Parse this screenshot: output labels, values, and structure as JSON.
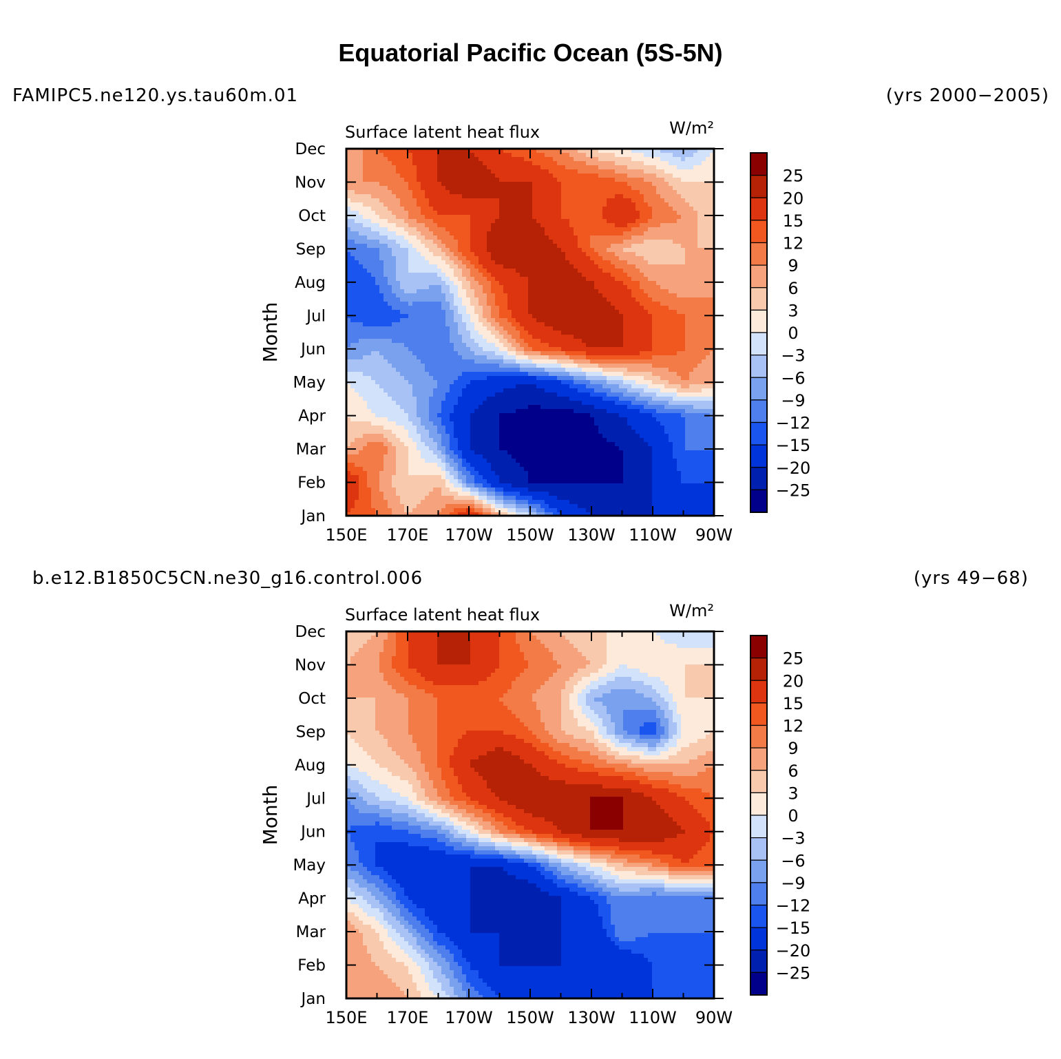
{
  "title": "Equatorial Pacific Ocean (5S-5N)",
  "colors": {
    "palette": [
      "#00008a",
      "#0020b0",
      "#0034db",
      "#1a55f0",
      "#4f7fec",
      "#7aa1ee",
      "#a8c2f5",
      "#d3e2fb",
      "#fdeadb",
      "#f9c9ad",
      "#f5a27d",
      "#f27b48",
      "#f05820",
      "#dc3510",
      "#b52205",
      "#8a0000"
    ],
    "frame": "#000000"
  },
  "levels": [
    25,
    20,
    15,
    12,
    9,
    6,
    3,
    0,
    -3,
    -6,
    -9,
    -12,
    -15,
    -20,
    -25
  ],
  "months": [
    "Jan",
    "Feb",
    "Mar",
    "Apr",
    "May",
    "Jun",
    "Jul",
    "Aug",
    "Sep",
    "Oct",
    "Nov",
    "Dec"
  ],
  "lon_ticks": [
    "150E",
    "170E",
    "170W",
    "150W",
    "130W",
    "110W",
    "90W"
  ],
  "panels": [
    {
      "case": "FAMIPC5.ne120.ys.tau60m.01",
      "years": "(yrs 2000−2005)",
      "variable": "Surface  latent  heat  flux",
      "units": "W/m²",
      "ylabel": "Month"
    },
    {
      "case": "b.e12.B1850C5CN.ne30_g16.control.006",
      "years": "(yrs 49−68)",
      "variable": "Surface  latent  heat  flux",
      "units": "W/m²",
      "ylabel": "Month"
    }
  ],
  "chart_data": [
    {
      "type": "heatmap",
      "title": "Surface latent heat flux",
      "case": "FAMIPC5.ne120.ys.tau60m.01",
      "units": "W/m²",
      "xlabel": "",
      "ylabel": "Month",
      "x_range": [
        150,
        270
      ],
      "y_range": [
        1,
        12
      ],
      "x_lon": [
        150,
        160,
        170,
        180,
        190,
        200,
        210,
        220,
        230,
        240,
        250,
        260,
        270
      ],
      "y_month": [
        1,
        2,
        3,
        4,
        5,
        6,
        7,
        8,
        9,
        10,
        11,
        12
      ],
      "z": [
        [
          15,
          12,
          6,
          9,
          20,
          6,
          -3,
          -15,
          -20,
          -25,
          -20,
          -20,
          -15
        ],
        [
          20,
          9,
          3,
          6,
          -9,
          -20,
          -25,
          -25,
          -25,
          -25,
          -20,
          -15,
          -15
        ],
        [
          6,
          12,
          3,
          -6,
          -20,
          -25,
          -27,
          -28,
          -27,
          -25,
          -20,
          -12,
          -12
        ],
        [
          3,
          0,
          -3,
          -12,
          -20,
          -25,
          -27,
          -28,
          -25,
          -20,
          -15,
          -12,
          -9
        ],
        [
          0,
          -3,
          -6,
          -9,
          -15,
          -18,
          -20,
          -15,
          -9,
          -3,
          3,
          9,
          6
        ],
        [
          -9,
          -6,
          -9,
          -12,
          -6,
          0,
          12,
          15,
          20,
          20,
          15,
          12,
          9
        ],
        [
          -12,
          -15,
          -12,
          -12,
          0,
          12,
          20,
          25,
          25,
          20,
          15,
          12,
          9
        ],
        [
          -15,
          -12,
          -3,
          -6,
          6,
          15,
          20,
          25,
          20,
          15,
          9,
          6,
          9
        ],
        [
          -12,
          -9,
          -3,
          6,
          15,
          25,
          25,
          20,
          12,
          6,
          3,
          6,
          6
        ],
        [
          -3,
          3,
          9,
          15,
          15,
          20,
          20,
          15,
          12,
          20,
          12,
          9,
          3
        ],
        [
          9,
          9,
          12,
          20,
          25,
          20,
          20,
          15,
          15,
          12,
          9,
          3,
          3
        ],
        [
          6,
          12,
          15,
          20,
          20,
          15,
          12,
          9,
          3,
          0,
          -3,
          -6,
          0
        ]
      ]
    },
    {
      "type": "heatmap",
      "title": "Surface latent heat flux",
      "case": "b.e12.B1850C5CN.ne30_g16.control.006",
      "units": "W/m²",
      "xlabel": "",
      "ylabel": "Month",
      "x_range": [
        150,
        270
      ],
      "y_range": [
        1,
        12
      ],
      "x_lon": [
        150,
        160,
        170,
        180,
        190,
        200,
        210,
        220,
        230,
        240,
        250,
        260,
        270
      ],
      "y_month": [
        1,
        2,
        3,
        4,
        5,
        6,
        7,
        8,
        9,
        10,
        11,
        12
      ],
      "z": [
        [
          6,
          9,
          6,
          0,
          -9,
          -15,
          -20,
          -20,
          -20,
          -20,
          -15,
          -15,
          -15
        ],
        [
          9,
          6,
          3,
          -6,
          -15,
          -20,
          -20,
          -20,
          -20,
          -20,
          -15,
          -15,
          -15
        ],
        [
          9,
          3,
          -6,
          -15,
          -20,
          -20,
          -25,
          -20,
          -20,
          -9,
          -12,
          -12,
          -12
        ],
        [
          0,
          -6,
          -15,
          -20,
          -20,
          -25,
          -25,
          -20,
          -15,
          -9,
          -12,
          -12,
          -12
        ],
        [
          -9,
          -15,
          -20,
          -20,
          -20,
          -20,
          -15,
          -6,
          0,
          6,
          9,
          15,
          12
        ],
        [
          -12,
          -15,
          -12,
          -9,
          0,
          9,
          15,
          20,
          25,
          25,
          25,
          20,
          15
        ],
        [
          -9,
          -3,
          0,
          9,
          15,
          20,
          25,
          25,
          25,
          25,
          20,
          15,
          12
        ],
        [
          0,
          3,
          6,
          12,
          20,
          25,
          20,
          15,
          12,
          9,
          6,
          6,
          9
        ],
        [
          3,
          6,
          9,
          12,
          15,
          15,
          12,
          6,
          3,
          -9,
          -15,
          0,
          3
        ],
        [
          6,
          6,
          9,
          12,
          12,
          12,
          9,
          6,
          -6,
          -9,
          -6,
          3,
          3
        ],
        [
          6,
          9,
          15,
          20,
          20,
          15,
          12,
          9,
          6,
          0,
          3,
          3,
          3
        ],
        [
          3,
          6,
          15,
          20,
          20,
          15,
          9,
          6,
          3,
          3,
          0,
          -3,
          -3
        ]
      ]
    }
  ]
}
